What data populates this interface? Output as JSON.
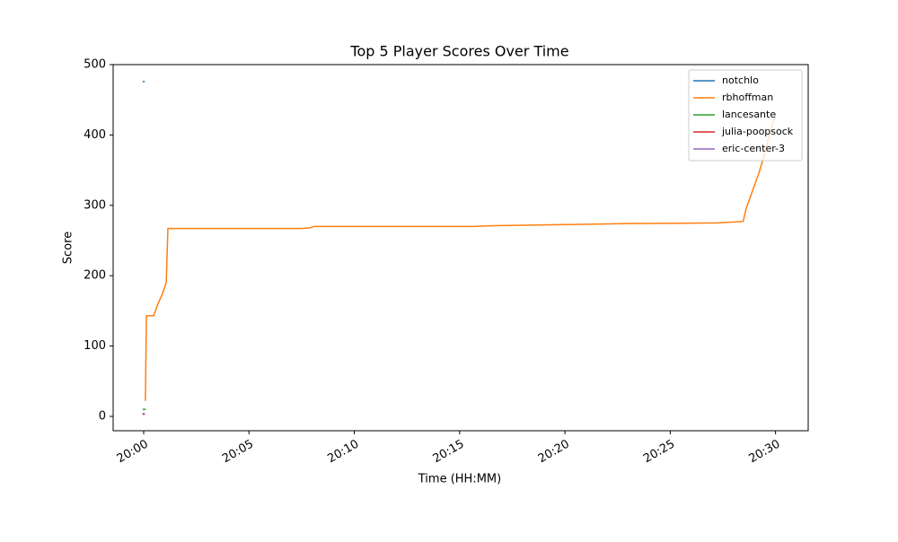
{
  "chart_data": {
    "type": "line",
    "title": "Top 5 Player Scores Over Time",
    "xlabel": "Time (HH:MM)",
    "ylabel": "Score",
    "xlim": [
      -1.45,
      31.55
    ],
    "ylim": [
      -20.4,
      500
    ],
    "xticks": [
      {
        "value": 0,
        "label": "20:00"
      },
      {
        "value": 5,
        "label": "20:05"
      },
      {
        "value": 10,
        "label": "20:10"
      },
      {
        "value": 15,
        "label": "20:15"
      },
      {
        "value": 20,
        "label": "20:20"
      },
      {
        "value": 25,
        "label": "20:25"
      },
      {
        "value": 30,
        "label": "20:30"
      }
    ],
    "yticks": [
      0,
      100,
      200,
      300,
      400,
      500
    ],
    "legend": "upper right",
    "series": [
      {
        "name": "notchlo",
        "color": "#1f77b4",
        "x": [
          -0.05,
          0.05
        ],
        "values": [
          476,
          476
        ]
      },
      {
        "name": "rbhoffman",
        "color": "#ff7f0e",
        "x": [
          0.08,
          0.13,
          0.47,
          0.68,
          0.9,
          1.07,
          1.15,
          7.5,
          7.9,
          8.1,
          15.6,
          16.6,
          18.75,
          23,
          27.27,
          28.46,
          28.6,
          28.9,
          29.2,
          29.5,
          29.75,
          30
        ],
        "values": [
          22,
          143,
          143,
          160,
          175,
          190,
          267,
          267,
          268,
          270,
          270,
          271,
          272,
          274,
          275,
          277,
          295,
          320,
          345,
          375,
          405,
          430
        ]
      },
      {
        "name": "lancesante",
        "color": "#2ca02c",
        "x": [
          -0.05,
          0.1
        ],
        "values": [
          10,
          10
        ]
      },
      {
        "name": "julia-poopsock",
        "color": "#d62728",
        "x": [
          -0.05,
          0.05
        ],
        "values": [
          3,
          3
        ]
      },
      {
        "name": "eric-center-3",
        "color": "#9467bd",
        "x": [
          -0.05,
          0.05
        ],
        "values": [
          4,
          4
        ]
      }
    ]
  }
}
